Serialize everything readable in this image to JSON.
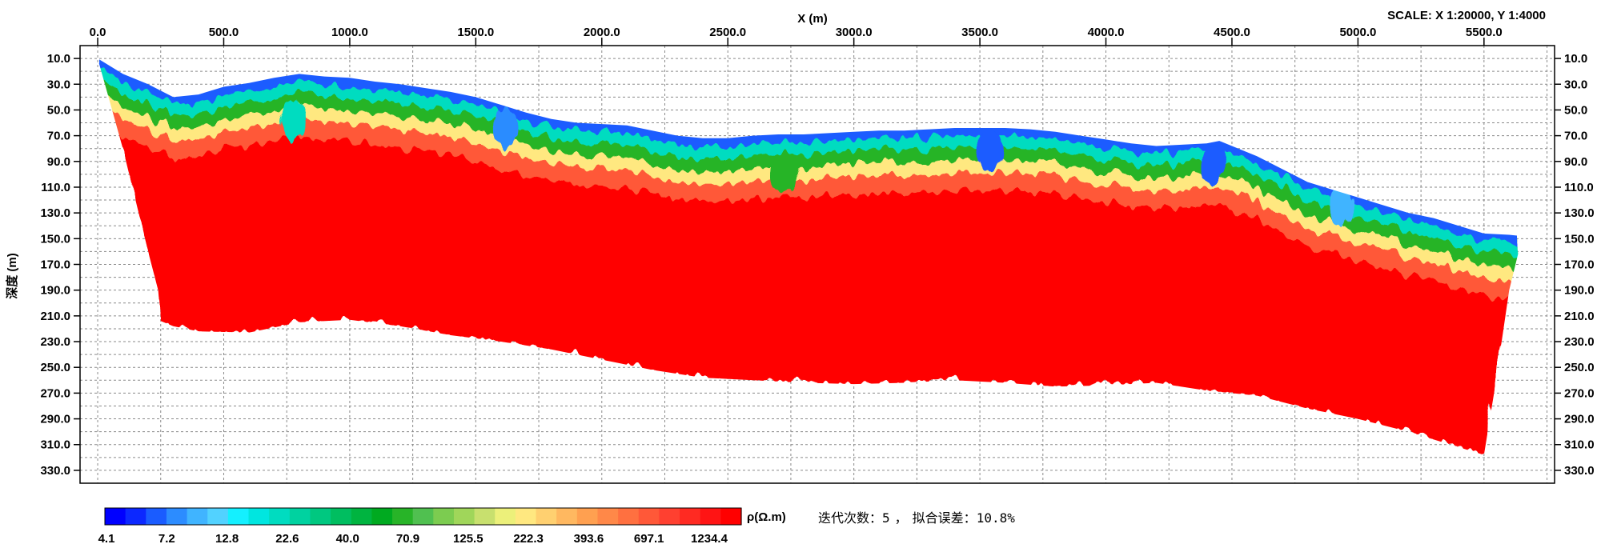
{
  "chart_data": {
    "type": "heatmap",
    "title": "",
    "xlabel": "X (m)",
    "ylabel": "深度 (m)",
    "scale_text": "SCALE: X 1:20000, Y 1:4000",
    "xlim": [
      -70,
      5780
    ],
    "ylim": [
      340,
      0
    ],
    "x_ticks": [
      0,
      500,
      1000,
      1500,
      2000,
      2500,
      3000,
      3500,
      4000,
      4500,
      5000,
      5500
    ],
    "x_tick_labels": [
      "0.0",
      "500.0",
      "1000.0",
      "1500.0",
      "2000.0",
      "2500.0",
      "3000.0",
      "3500.0",
      "4000.0",
      "4500.0",
      "5000.0",
      "5500.0"
    ],
    "y_ticks": [
      10,
      30,
      50,
      70,
      90,
      110,
      130,
      150,
      170,
      190,
      210,
      230,
      250,
      270,
      290,
      310,
      330
    ],
    "y_tick_labels": [
      "10.0",
      "30.0",
      "50.0",
      "70.0",
      "90.0",
      "110.0",
      "130.0",
      "150.0",
      "170.0",
      "190.0",
      "210.0",
      "230.0",
      "250.0",
      "270.0",
      "290.0",
      "310.0",
      "330.0"
    ],
    "grid": true,
    "section": {
      "top_boundary": [
        [
          0,
          10
        ],
        [
          100,
          22
        ],
        [
          200,
          30
        ],
        [
          300,
          40
        ],
        [
          400,
          38
        ],
        [
          500,
          32
        ],
        [
          600,
          29
        ],
        [
          700,
          25
        ],
        [
          800,
          22
        ],
        [
          900,
          24
        ],
        [
          1000,
          25
        ],
        [
          1100,
          28
        ],
        [
          1200,
          30
        ],
        [
          1300,
          33
        ],
        [
          1400,
          36
        ],
        [
          1500,
          40
        ],
        [
          1600,
          46
        ],
        [
          1700,
          52
        ],
        [
          1800,
          57
        ],
        [
          1900,
          60
        ],
        [
          2000,
          61
        ],
        [
          2100,
          62
        ],
        [
          2200,
          66
        ],
        [
          2300,
          70
        ],
        [
          2400,
          72
        ],
        [
          2500,
          72
        ],
        [
          2600,
          70
        ],
        [
          2700,
          69
        ],
        [
          2800,
          69
        ],
        [
          2900,
          68
        ],
        [
          3000,
          67
        ],
        [
          3100,
          66
        ],
        [
          3200,
          66
        ],
        [
          3300,
          65
        ],
        [
          3400,
          64
        ],
        [
          3500,
          64
        ],
        [
          3600,
          64
        ],
        [
          3700,
          65
        ],
        [
          3800,
          67
        ],
        [
          3900,
          70
        ],
        [
          4000,
          73
        ],
        [
          4100,
          76
        ],
        [
          4200,
          78
        ],
        [
          4300,
          77
        ],
        [
          4400,
          76
        ],
        [
          4450,
          74
        ],
        [
          4500,
          78
        ],
        [
          4600,
          86
        ],
        [
          4700,
          96
        ],
        [
          4800,
          106
        ],
        [
          4900,
          112
        ],
        [
          5000,
          118
        ],
        [
          5100,
          124
        ],
        [
          5200,
          130
        ],
        [
          5300,
          134
        ],
        [
          5400,
          140
        ],
        [
          5500,
          146
        ],
        [
          5600,
          147
        ],
        [
          5650,
          148
        ]
      ],
      "bottom_boundary": [
        [
          5650,
          150
        ],
        [
          5600,
          190
        ],
        [
          5570,
          230
        ],
        [
          5540,
          270
        ],
        [
          5500,
          318
        ],
        [
          5400,
          312
        ],
        [
          5200,
          300
        ],
        [
          5000,
          290
        ],
        [
          4800,
          282
        ],
        [
          4600,
          272
        ],
        [
          4400,
          268
        ],
        [
          4200,
          262
        ],
        [
          4000,
          264
        ],
        [
          3800,
          265
        ],
        [
          3600,
          262
        ],
        [
          3400,
          260
        ],
        [
          3200,
          262
        ],
        [
          3000,
          263
        ],
        [
          2800,
          262
        ],
        [
          2600,
          260
        ],
        [
          2400,
          258
        ],
        [
          2200,
          252
        ],
        [
          2000,
          244
        ],
        [
          1800,
          236
        ],
        [
          1600,
          230
        ],
        [
          1400,
          225
        ],
        [
          1200,
          218
        ],
        [
          1000,
          213
        ],
        [
          800,
          215
        ],
        [
          600,
          223
        ],
        [
          400,
          222
        ],
        [
          300,
          218
        ],
        [
          250,
          214
        ],
        [
          240,
          190
        ],
        [
          200,
          160
        ],
        [
          150,
          120
        ],
        [
          100,
          80
        ],
        [
          50,
          45
        ],
        [
          0,
          10
        ]
      ],
      "layers": [
        {
          "value": 5.5,
          "thickness": 6
        },
        {
          "value": 18,
          "thickness": 9
        },
        {
          "value": 60,
          "thickness": 10
        },
        {
          "value": 200,
          "thickness": 10
        },
        {
          "value": 600,
          "thickness": 14
        }
      ],
      "bulk_value": 1234.4,
      "low_resistivity_pockets": [
        {
          "x": 770,
          "y": 58,
          "value": 20
        },
        {
          "x": 1620,
          "y": 62,
          "value": 7
        },
        {
          "x": 2730,
          "y": 100,
          "value": 60
        },
        {
          "x": 3540,
          "y": 80,
          "value": 6
        },
        {
          "x": 4420,
          "y": 92,
          "value": 6
        },
        {
          "x": 4930,
          "y": 125,
          "value": 8
        }
      ]
    },
    "colorbar": {
      "label": "ρ(Ω.m)",
      "tick_labels": [
        "4.1",
        "7.2",
        "12.8",
        "22.6",
        "40.0",
        "70.9",
        "125.5",
        "222.3",
        "393.6",
        "697.1",
        "1234.4"
      ],
      "colors": [
        "#0000ff",
        "#0c28ff",
        "#1a5cff",
        "#2c8cff",
        "#40b4ff",
        "#52d2ff",
        "#14f0ff",
        "#00e6e0",
        "#00dcc0",
        "#00d2a0",
        "#00c880",
        "#00be60",
        "#00b440",
        "#00aa20",
        "#28b428",
        "#50c050",
        "#7ccc50",
        "#a0d65a",
        "#c8e06e",
        "#ecf07a",
        "#ffe880",
        "#ffd070",
        "#ffb860",
        "#ffa050",
        "#ff8848",
        "#ff7040",
        "#ff5838",
        "#ff4030",
        "#ff2a22",
        "#ff1414",
        "#ff0000"
      ]
    }
  },
  "info": {
    "iterations_label": "迭代次数：",
    "iterations_value": "5",
    "separator": "，",
    "fit_error_label": "拟合误差：",
    "fit_error_value": "10.8%"
  }
}
